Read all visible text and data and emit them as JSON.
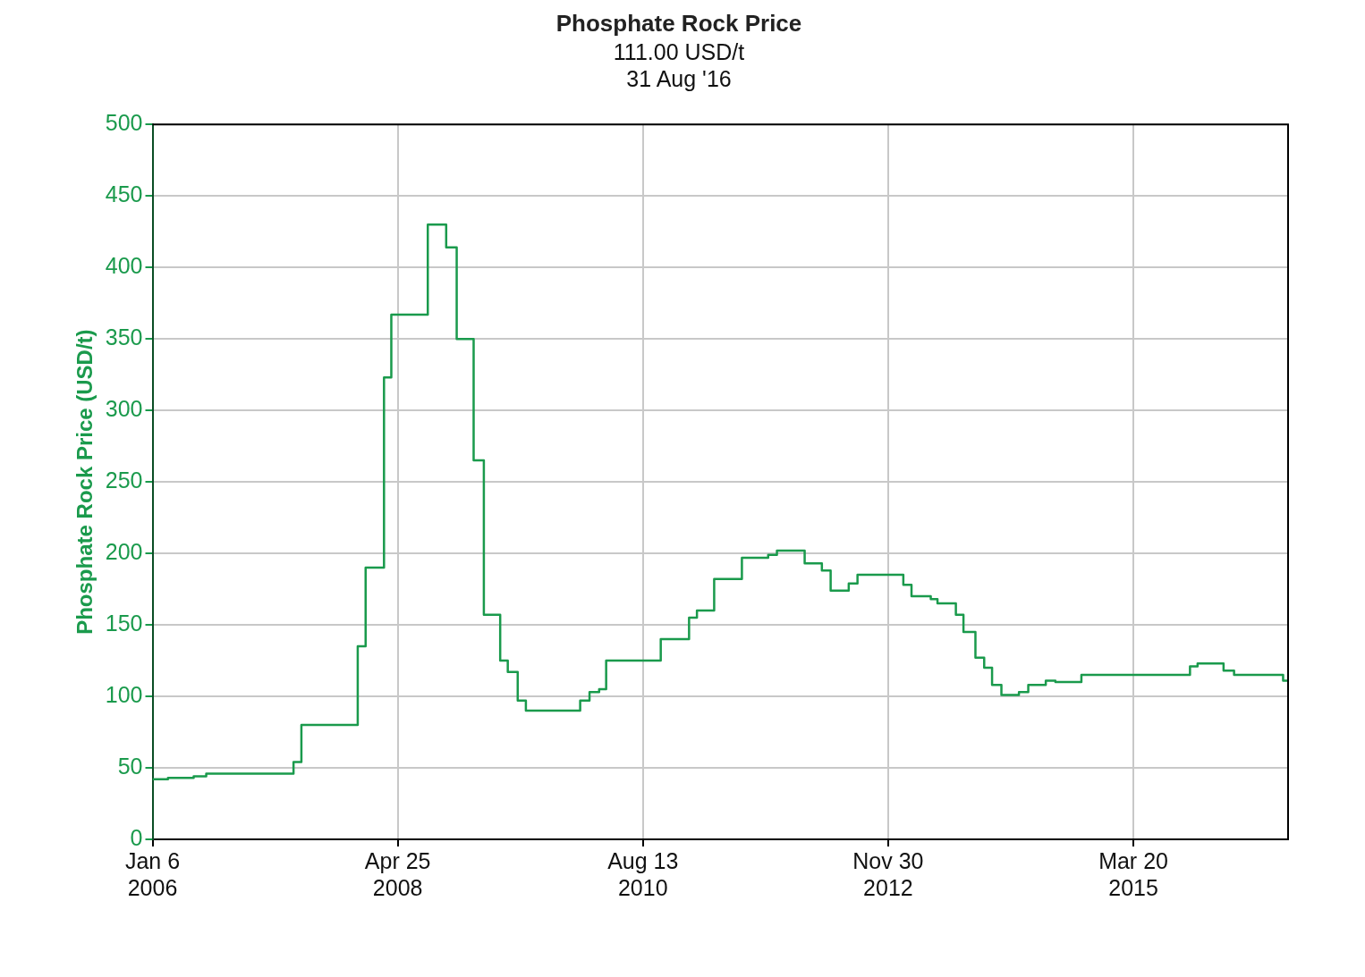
{
  "chart_data": {
    "type": "step",
    "title": "Phosphate Rock Price",
    "subtitle": "111.00 USD/t\n31 Aug '16",
    "ylabel": "Phosphate Rock Price (USD/t)",
    "x": [
      "2006-01-06",
      "2006-02-28",
      "2006-05-27",
      "2006-07-09",
      "2007-05-04",
      "2007-05-31",
      "2007-12-10",
      "2008-01-06",
      "2008-03-09",
      "2008-04-03",
      "2008-08-06",
      "2008-10-08",
      "2008-11-13",
      "2009-01-10",
      "2009-02-14",
      "2009-04-11",
      "2009-05-07",
      "2009-06-10",
      "2009-07-08",
      "2010-01-10",
      "2010-02-11",
      "2010-03-16",
      "2010-04-09",
      "2010-10-13",
      "2011-01-18",
      "2011-02-14",
      "2011-04-14",
      "2011-07-18",
      "2011-10-16",
      "2011-11-15",
      "2012-02-18",
      "2012-04-17",
      "2012-05-17",
      "2012-07-18",
      "2012-08-17",
      "2013-01-21",
      "2013-02-18",
      "2013-04-25",
      "2013-05-18",
      "2013-07-20",
      "2013-08-15",
      "2013-09-25",
      "2013-10-25",
      "2013-11-21",
      "2013-12-23",
      "2014-02-21",
      "2014-03-25",
      "2014-05-24",
      "2014-06-26",
      "2014-09-23",
      "2015-09-30",
      "2015-10-26",
      "2016-01-23",
      "2016-02-28",
      "2016-08-14",
      "2016-08-31"
    ],
    "series": [
      {
        "color": "#1a9a4c",
        "values": [
          42,
          43,
          44,
          46,
          54,
          80,
          135,
          190,
          323,
          367,
          430,
          414,
          350,
          265,
          157,
          125,
          117,
          97,
          90,
          97,
          103,
          105,
          125,
          140,
          155,
          160,
          182,
          197,
          199,
          202,
          193,
          188,
          174,
          179,
          185,
          178,
          170,
          168,
          165,
          157,
          145,
          127,
          120,
          108,
          101,
          103,
          108,
          111,
          110,
          115,
          121,
          123,
          118,
          115,
          111,
          111
        ]
      }
    ],
    "xlim": [
      "2006-01-06",
      "2016-08-31"
    ],
    "xticks": [
      {
        "value": "2006-01-06",
        "label": "Jan 6\n2006"
      },
      {
        "value": "2008-04-25",
        "label": "Apr 25\n2008"
      },
      {
        "value": "2010-08-13",
        "label": "Aug 13\n2010"
      },
      {
        "value": "2012-11-30",
        "label": "Nov 30\n2012"
      },
      {
        "value": "2015-03-20",
        "label": "Mar 20\n2015"
      }
    ],
    "ylim": [
      0,
      500
    ],
    "yticks": [
      0,
      50,
      100,
      150,
      200,
      250,
      300,
      350,
      400,
      450,
      500
    ],
    "grid": true,
    "legend": false,
    "marker": "none",
    "line_style": "solid"
  }
}
